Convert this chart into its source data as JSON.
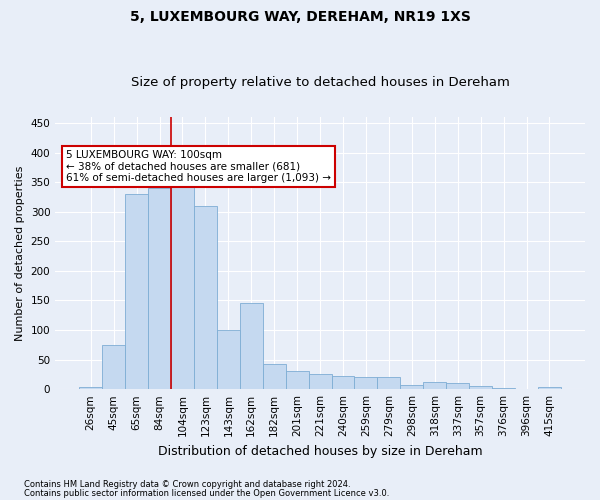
{
  "title": "5, LUXEMBOURG WAY, DEREHAM, NR19 1XS",
  "subtitle": "Size of property relative to detached houses in Dereham",
  "xlabel": "Distribution of detached houses by size in Dereham",
  "ylabel": "Number of detached properties",
  "footnote1": "Contains HM Land Registry data © Crown copyright and database right 2024.",
  "footnote2": "Contains public sector information licensed under the Open Government Licence v3.0.",
  "categories": [
    "26sqm",
    "45sqm",
    "65sqm",
    "84sqm",
    "104sqm",
    "123sqm",
    "143sqm",
    "162sqm",
    "182sqm",
    "201sqm",
    "221sqm",
    "240sqm",
    "259sqm",
    "279sqm",
    "298sqm",
    "318sqm",
    "337sqm",
    "357sqm",
    "376sqm",
    "396sqm",
    "415sqm"
  ],
  "values": [
    4,
    75,
    330,
    340,
    360,
    310,
    100,
    145,
    42,
    30,
    25,
    23,
    21,
    21,
    7,
    12,
    10,
    5,
    2,
    1,
    3
  ],
  "bar_color": "#c5d9f0",
  "bar_edge_color": "#7eadd4",
  "vline_x_index": 4,
  "vline_color": "#cc0000",
  "annotation_text": "5 LUXEMBOURG WAY: 100sqm\n← 38% of detached houses are smaller (681)\n61% of semi-detached houses are larger (1,093) →",
  "annotation_box_color": "#cc0000",
  "annotation_bg": "white",
  "ylim": [
    0,
    460
  ],
  "yticks": [
    0,
    50,
    100,
    150,
    200,
    250,
    300,
    350,
    400,
    450
  ],
  "background_color": "#e8eef8",
  "grid_color": "#ffffff",
  "title_fontsize": 10,
  "subtitle_fontsize": 9.5,
  "tick_fontsize": 7.5,
  "ylabel_fontsize": 8,
  "xlabel_fontsize": 9,
  "footnote_fontsize": 6,
  "annotation_fontsize": 7.5
}
